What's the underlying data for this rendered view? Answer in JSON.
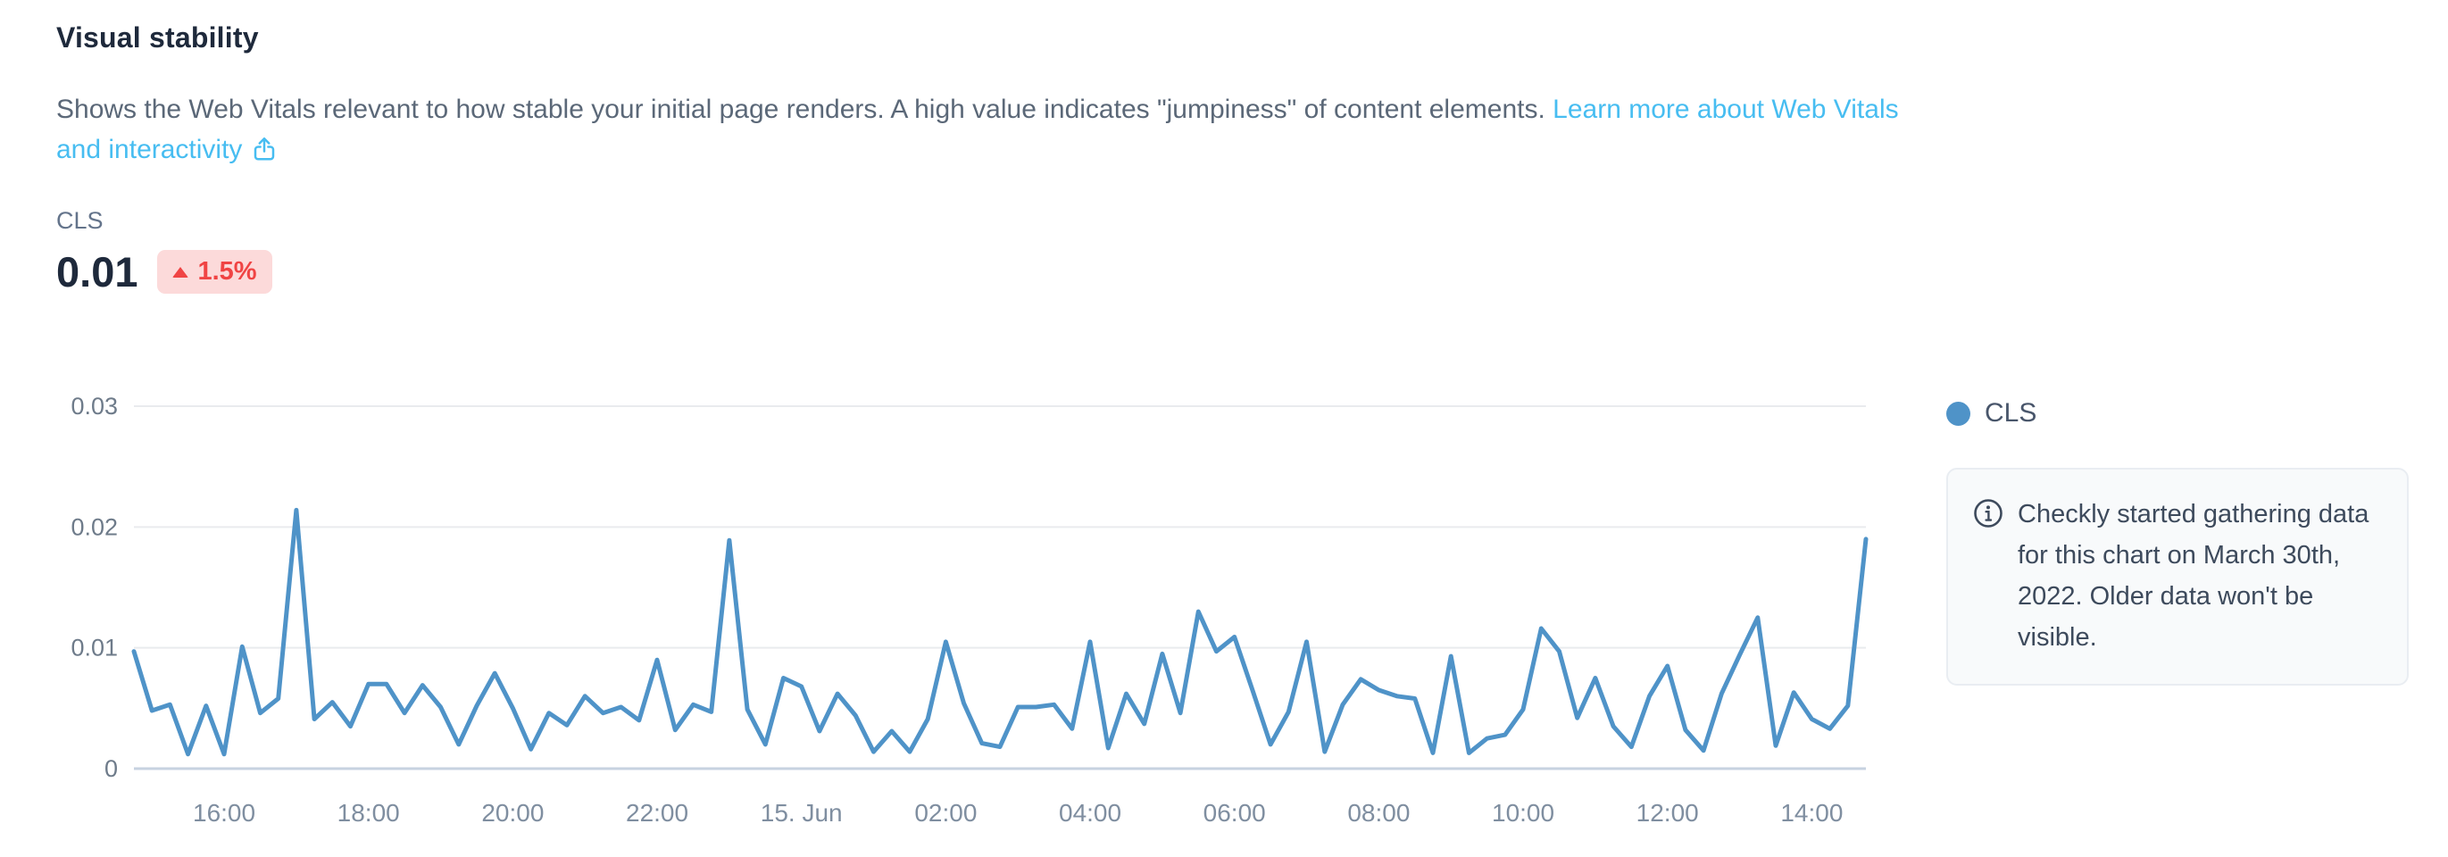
{
  "header": {
    "title": "Visual stability",
    "description": "Shows the Web Vitals relevant to how stable your initial page renders. A high value indicates \"jumpiness\" of content elements. ",
    "link_text": "Learn more about Web Vitals and interactivity"
  },
  "metric": {
    "label": "CLS",
    "value": "0.01",
    "delta": "1.5%",
    "delta_direction": "up"
  },
  "legend": {
    "label": "CLS"
  },
  "info_box": {
    "text": "Checkly started gathering data for this chart on March 30th, 2022. Older data won't be visible."
  },
  "colors": {
    "line": "#4f93c8",
    "link": "#47bdf1",
    "badge_bg": "#fcdada",
    "badge_text": "#f04444",
    "grid": "#e9ebee",
    "baseline": "#c7d2e0",
    "y_label": "#6e7b8a",
    "x_label": "#7f8ea0"
  },
  "chart_data": {
    "type": "line",
    "title": "CLS over time",
    "series_name": "CLS",
    "ylim": [
      0,
      0.03
    ],
    "yticks": [
      0,
      0.01,
      0.02,
      0.03
    ],
    "ytick_labels": [
      "0",
      "0.01",
      "0.02",
      "0.03"
    ],
    "grid": true,
    "legend_position": "right",
    "xtick_labels": [
      "16:00",
      "18:00",
      "20:00",
      "22:00",
      "15. Jun",
      "02:00",
      "04:00",
      "06:00",
      "08:00",
      "10:00",
      "12:00",
      "14:00"
    ],
    "xtick_indices": [
      5,
      13,
      21,
      29,
      37,
      45,
      53,
      61,
      69,
      77,
      85,
      93
    ],
    "x_start_time": "14:45 Jun 14",
    "x_interval_minutes": 15,
    "values": [
      0.0097,
      0.0048,
      0.0053,
      0.0012,
      0.0052,
      0.0012,
      0.0101,
      0.0046,
      0.0058,
      0.0214,
      0.0041,
      0.0055,
      0.0035,
      0.007,
      0.007,
      0.0046,
      0.0069,
      0.0051,
      0.002,
      0.0052,
      0.0079,
      0.005,
      0.0016,
      0.0046,
      0.0036,
      0.006,
      0.0046,
      0.0051,
      0.004,
      0.009,
      0.0032,
      0.0053,
      0.0047,
      0.0189,
      0.0049,
      0.002,
      0.0075,
      0.0068,
      0.0031,
      0.0062,
      0.0044,
      0.0014,
      0.0031,
      0.0014,
      0.0041,
      0.0105,
      0.0054,
      0.0021,
      0.0018,
      0.0051,
      0.0051,
      0.0053,
      0.0033,
      0.0105,
      0.0017,
      0.0062,
      0.0037,
      0.0095,
      0.0046,
      0.013,
      0.0097,
      0.0109,
      0.0065,
      0.002,
      0.0047,
      0.0105,
      0.0014,
      0.0053,
      0.0074,
      0.0065,
      0.006,
      0.0058,
      0.0013,
      0.0093,
      0.0013,
      0.0025,
      0.0028,
      0.0049,
      0.0116,
      0.0097,
      0.0042,
      0.0075,
      0.0035,
      0.0018,
      0.006,
      0.0085,
      0.0032,
      0.0015,
      0.0062,
      0.0094,
      0.0125,
      0.0019,
      0.0063,
      0.0041,
      0.0033,
      0.0052,
      0.019
    ]
  }
}
